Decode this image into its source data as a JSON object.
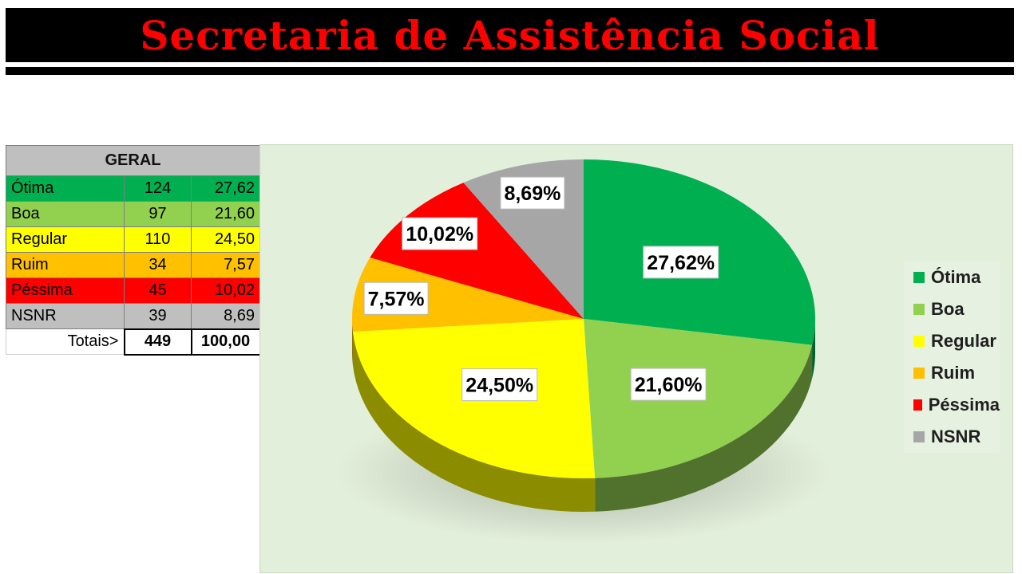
{
  "title": "Secretaria de Assistência Social",
  "table": {
    "header": "GERAL",
    "rows": [
      {
        "label": "Ótima",
        "count": "124",
        "percent": "27,62",
        "color": "#00b050"
      },
      {
        "label": "Boa",
        "count": "97",
        "percent": "21,60",
        "color": "#92d050"
      },
      {
        "label": "Regular",
        "count": "110",
        "percent": "24,50",
        "color": "#ffff00"
      },
      {
        "label": "Ruim",
        "count": "34",
        "percent": "7,57",
        "color": "#ffc000"
      },
      {
        "label": "Péssima",
        "count": "45",
        "percent": "10,02",
        "color": "#ff0000"
      },
      {
        "label": "NSNR",
        "count": "39",
        "percent": "8,69",
        "color": "#bfbfbf"
      }
    ],
    "totals": {
      "label": "Totais>",
      "count": "449",
      "percent": "100,00"
    }
  },
  "chart_data": {
    "type": "pie",
    "style": "3d",
    "categories": [
      "Ótima",
      "Boa",
      "Regular",
      "Ruim",
      "Péssima",
      "NSNR"
    ],
    "values": [
      27.62,
      21.6,
      24.5,
      7.57,
      10.02,
      8.69
    ],
    "data_labels": [
      "27,62%",
      "21,60%",
      "24,50%",
      "7,57%",
      "10,02%",
      "8,69%"
    ],
    "colors": [
      "#00b050",
      "#92d050",
      "#ffff00",
      "#ffc000",
      "#ff0000",
      "#a6a6a6"
    ],
    "legend": {
      "position": "right",
      "items": [
        {
          "label": "Ótima",
          "color": "#00b050"
        },
        {
          "label": "Boa",
          "color": "#92d050"
        },
        {
          "label": "Regular",
          "color": "#ffff00"
        },
        {
          "label": "Ruim",
          "color": "#ffc000"
        },
        {
          "label": "Péssima",
          "color": "#ff0000"
        },
        {
          "label": "NSNR",
          "color": "#a6a6a6"
        }
      ]
    }
  }
}
